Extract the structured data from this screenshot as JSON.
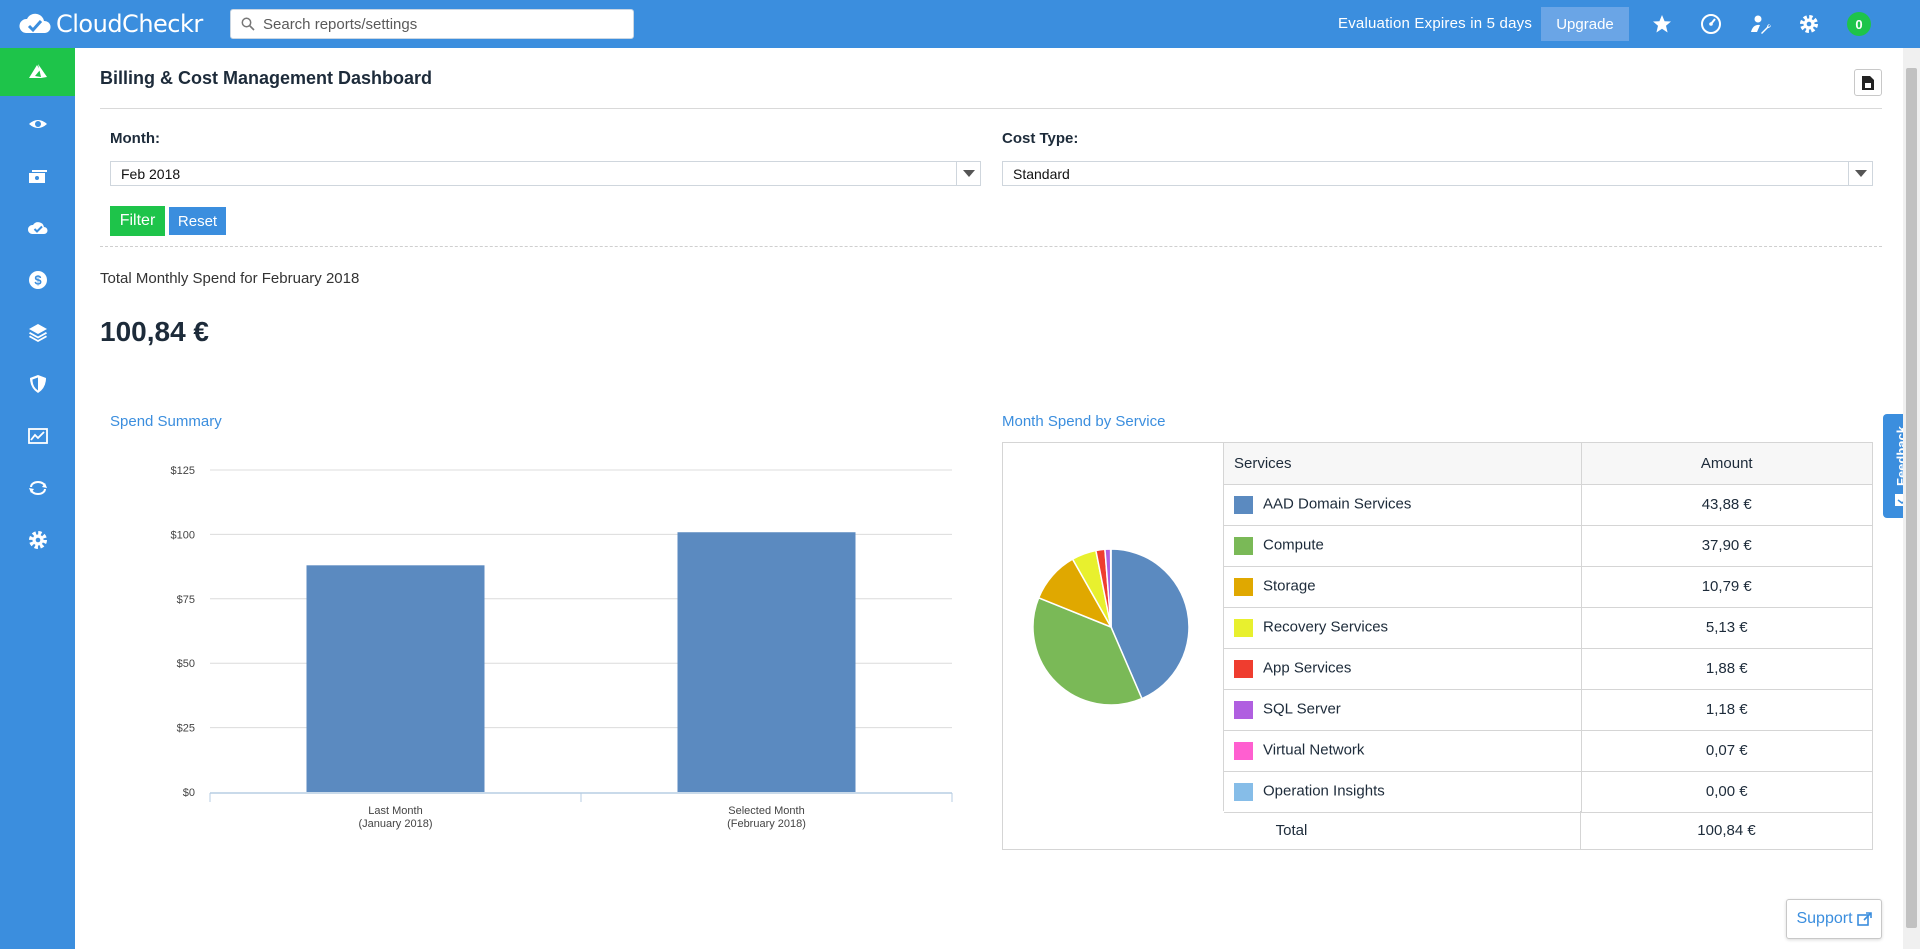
{
  "app": {
    "name": "CloudCheckr"
  },
  "search": {
    "placeholder": "Search reports/settings"
  },
  "header": {
    "evaluation_text": "Evaluation Expires in 5 days",
    "upgrade_label": "Upgrade",
    "notification_count": "0",
    "icons": [
      "star-icon",
      "dashboard-gauge-icon",
      "user-wrench-icon",
      "gear-icon"
    ]
  },
  "sidebar": {
    "items": [
      {
        "name": "home",
        "icon": "azure-logo-icon",
        "active": true
      },
      {
        "name": "visibility",
        "icon": "eye-icon"
      },
      {
        "name": "inventory",
        "icon": "servers-icon"
      },
      {
        "name": "cloud-check",
        "icon": "cloud-check-icon"
      },
      {
        "name": "cost",
        "icon": "dollar-icon"
      },
      {
        "name": "resources",
        "icon": "layers-icon"
      },
      {
        "name": "security",
        "icon": "shield-icon"
      },
      {
        "name": "utilization",
        "icon": "chart-line-icon"
      },
      {
        "name": "automation",
        "icon": "cycle-icon"
      },
      {
        "name": "settings",
        "icon": "gear-icon"
      }
    ]
  },
  "page": {
    "title": "Billing & Cost Management Dashboard",
    "month_label": "Month:",
    "month_value": "Feb 2018",
    "cost_type_label": "Cost Type:",
    "cost_type_value": "Standard",
    "filter_label": "Filter",
    "reset_label": "Reset",
    "total_label": "Total Monthly Spend for February 2018",
    "total_value": "100,84 €"
  },
  "spend_summary": {
    "title": "Spend Summary"
  },
  "month_spend": {
    "title": "Month Spend by Service",
    "col_services": "Services",
    "col_amount": "Amount",
    "rows": [
      {
        "name": "AAD Domain Services",
        "amount": "43,88 €",
        "color": "#5b8ac0"
      },
      {
        "name": "Compute",
        "amount": "37,90 €",
        "color": "#7ab957"
      },
      {
        "name": "Storage",
        "amount": "10,79 €",
        "color": "#e0a800"
      },
      {
        "name": "Recovery Services",
        "amount": "5,13 €",
        "color": "#e8f02e"
      },
      {
        "name": "App Services",
        "amount": "1,88 €",
        "color": "#ef3d2f"
      },
      {
        "name": "SQL Server",
        "amount": "1,18 €",
        "color": "#b05fe0"
      },
      {
        "name": "Virtual Network",
        "amount": "0,07 €",
        "color": "#ff5fd0"
      },
      {
        "name": "Operation Insights",
        "amount": "0,00 €",
        "color": "#86bde8"
      }
    ],
    "total_label": "Total",
    "total_value": "100,84 €"
  },
  "chart_data": [
    {
      "type": "bar",
      "categories": [
        "Last Month (January 2018)",
        "Selected Month (February 2018)"
      ],
      "category_lines": [
        [
          "Last Month",
          "(January 2018)"
        ],
        [
          "Selected Month",
          "(February 2018)"
        ]
      ],
      "values": [
        88,
        100.84
      ],
      "ylim": [
        0,
        125
      ],
      "yticks": [
        "$0",
        "$25",
        "$50",
        "$75",
        "$100",
        "$125"
      ],
      "ytick_values": [
        0,
        25,
        50,
        75,
        100,
        125
      ],
      "color": "#5b8ac0",
      "grid": true
    },
    {
      "type": "pie",
      "labels": [
        "AAD Domain Services",
        "Compute",
        "Storage",
        "Recovery Services",
        "App Services",
        "SQL Server",
        "Virtual Network",
        "Operation Insights"
      ],
      "values": [
        43.88,
        37.9,
        10.79,
        5.13,
        1.88,
        1.18,
        0.07,
        0.0
      ]
    }
  ],
  "feedback_label": "Feedback",
  "support_label": "Support"
}
